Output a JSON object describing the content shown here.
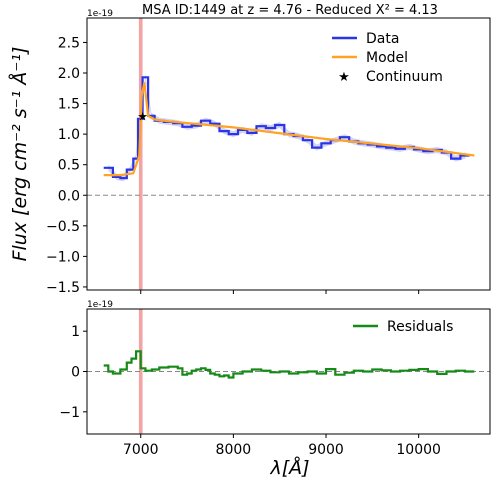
{
  "chart_data": [
    {
      "type": "line",
      "title": "MSA ID:1449 at z = 4.76 - Reduced X² = 4.13",
      "ylabel": "Flux [erg cm⁻² s⁻¹ Å⁻¹]",
      "yscale_note": "1e-19",
      "xlim": [
        6420,
        10770
      ],
      "ylim": [
        -1.55,
        2.9
      ],
      "yticks": [
        -1.5,
        -1.0,
        -0.5,
        0.0,
        0.5,
        1.0,
        1.5,
        2.0,
        2.5
      ],
      "ytick_labels": [
        "−1.5",
        "−1.0",
        "−0.5",
        "0.0",
        "0.5",
        "1.0",
        "1.5",
        "2.0",
        "2.5"
      ],
      "xticks": [
        7000,
        8000,
        9000,
        10000
      ],
      "grid": false,
      "legend_position": "top-right",
      "vline_x": 7000,
      "hline_y": 0,
      "series": [
        {
          "name": "Data",
          "color": "#2a35e6",
          "style": "step",
          "x": [
            6600,
            6700,
            6780,
            6850,
            6920,
            6970,
            7020,
            7080,
            7150,
            7250,
            7350,
            7450,
            7550,
            7650,
            7750,
            7850,
            7950,
            8050,
            8150,
            8250,
            8350,
            8450,
            8550,
            8650,
            8750,
            8850,
            8950,
            9050,
            9150,
            9250,
            9350,
            9450,
            9550,
            9650,
            9750,
            9850,
            9950,
            10050,
            10150,
            10250,
            10350,
            10450
          ],
          "y": [
            0.45,
            0.3,
            0.28,
            0.42,
            0.6,
            1.25,
            1.93,
            1.3,
            1.22,
            1.2,
            1.18,
            1.12,
            1.14,
            1.22,
            1.17,
            1.05,
            1.0,
            1.07,
            1.02,
            1.13,
            1.1,
            1.15,
            1.0,
            0.97,
            0.9,
            0.78,
            0.85,
            0.9,
            0.95,
            0.88,
            0.85,
            0.83,
            0.8,
            0.78,
            0.76,
            0.79,
            0.75,
            0.72,
            0.74,
            0.7,
            0.6,
            0.65
          ]
        },
        {
          "name": "Model",
          "color": "#ffa324",
          "style": "line",
          "x": [
            6600,
            6780,
            6920,
            6985,
            7010,
            7040,
            7080,
            7150,
            7300,
            8000,
            9000,
            10000,
            10600
          ],
          "y": [
            0.33,
            0.33,
            0.36,
            0.65,
            1.62,
            1.85,
            1.3,
            1.24,
            1.21,
            1.11,
            0.92,
            0.77,
            0.65
          ]
        },
        {
          "name": "Continuum",
          "color": "#000000",
          "style": "marker",
          "x": [
            7020
          ],
          "y": [
            1.3
          ]
        }
      ]
    },
    {
      "type": "line",
      "xlabel": "λ[Å]",
      "yscale_note": "1e-19",
      "xlim": [
        6420,
        10770
      ],
      "ylim": [
        -1.55,
        1.55
      ],
      "yticks": [
        -1,
        0,
        1
      ],
      "ytick_labels": [
        "−1",
        "0",
        "1"
      ],
      "xticks": [
        7000,
        8000,
        9000,
        10000
      ],
      "xtick_labels": [
        "7000",
        "8000",
        "9000",
        "10000"
      ],
      "grid": false,
      "legend_position": "top-right",
      "vline_x": 7000,
      "hline_y": 0,
      "series": [
        {
          "name": "Residuals",
          "color": "#168a16",
          "style": "step",
          "x": [
            6600,
            6650,
            6700,
            6780,
            6850,
            6900,
            6950,
            7000,
            7050,
            7120,
            7200,
            7300,
            7400,
            7450,
            7500,
            7550,
            7600,
            7650,
            7700,
            7750,
            7800,
            7850,
            7900,
            7950,
            8000,
            8100,
            8200,
            8300,
            8400,
            8500,
            8600,
            8700,
            8800,
            8900,
            9000,
            9100,
            9200,
            9300,
            9400,
            9500,
            9600,
            9700,
            9800,
            9900,
            10000,
            10100,
            10200,
            10300,
            10400,
            10500
          ],
          "y": [
            0.15,
            0.0,
            -0.05,
            0.05,
            0.22,
            0.32,
            0.5,
            0.08,
            0.02,
            0.05,
            0.1,
            0.12,
            0.08,
            -0.08,
            -0.05,
            0.02,
            0.05,
            0.08,
            0.04,
            -0.05,
            -0.08,
            -0.12,
            -0.1,
            -0.15,
            -0.05,
            0.0,
            0.05,
            0.02,
            -0.02,
            0.0,
            -0.05,
            -0.02,
            0.0,
            -0.05,
            0.06,
            -0.08,
            -0.03,
            0.02,
            0.0,
            0.05,
            0.03,
            0.0,
            0.02,
            0.04,
            0.06,
            0.0,
            -0.06,
            0.0,
            0.02,
            0.0
          ]
        }
      ]
    }
  ]
}
